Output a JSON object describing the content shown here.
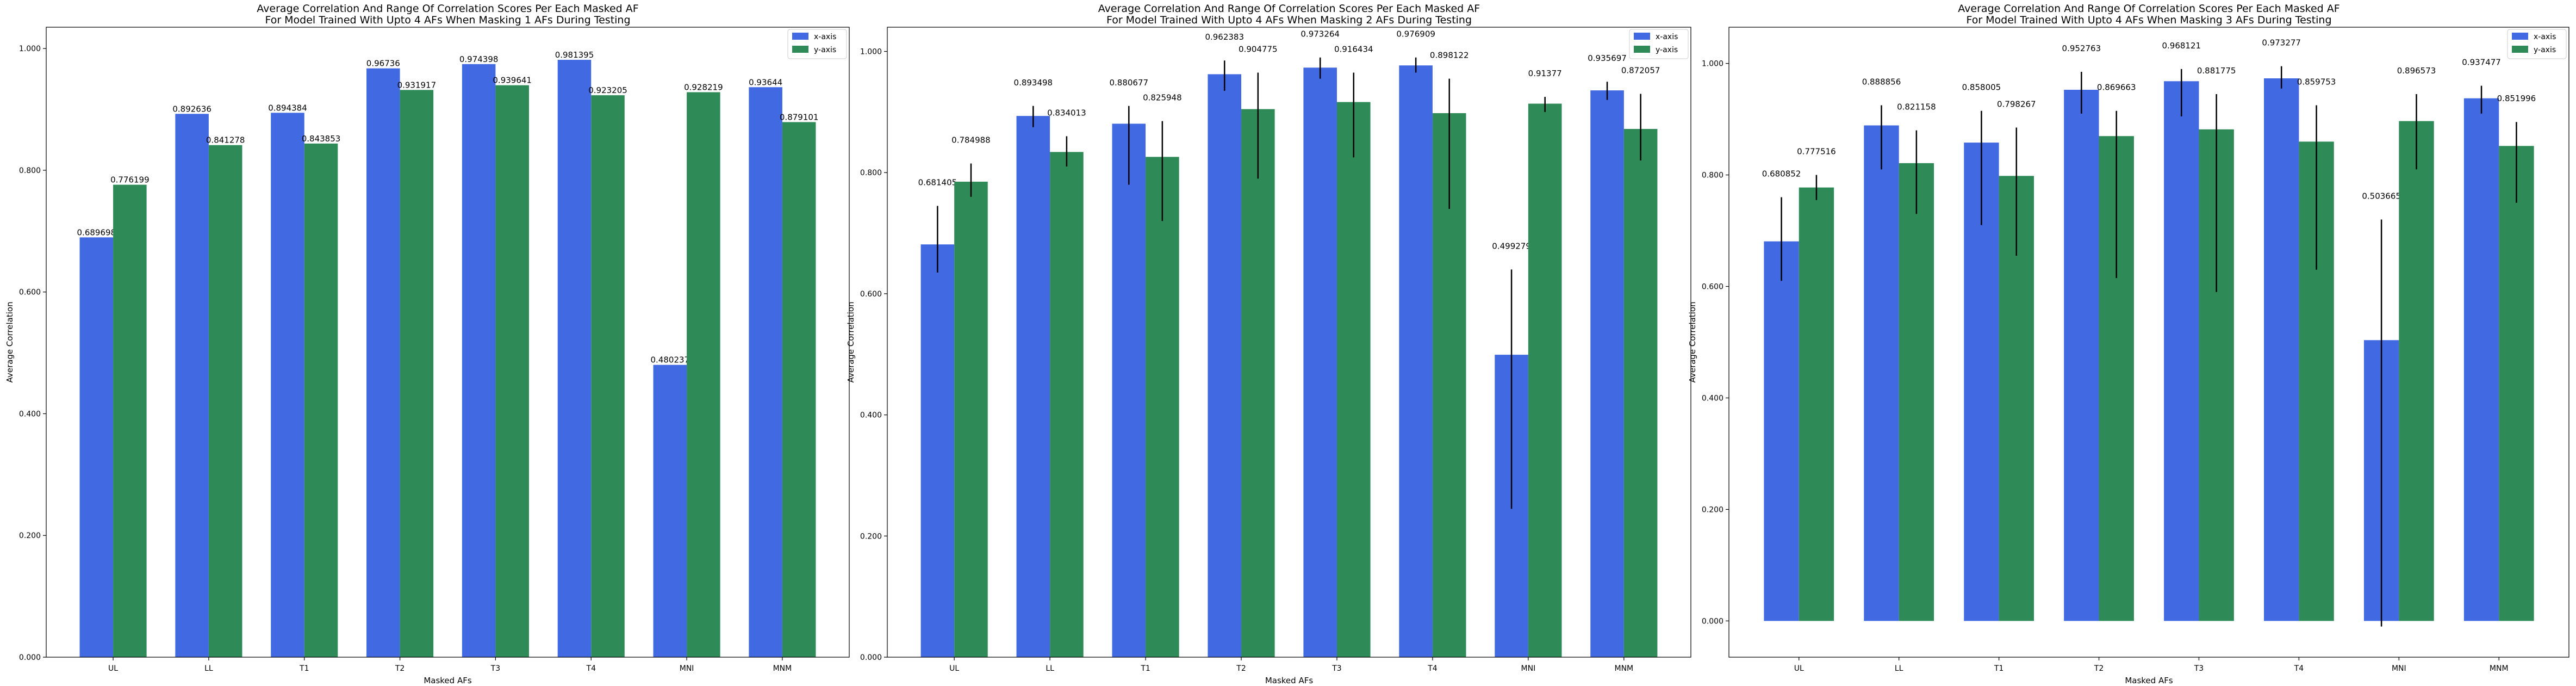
{
  "figure": {
    "background": "#ffffff",
    "x_color": "#4169e1",
    "y_color": "#2e8b57",
    "error_color": "#000000"
  },
  "chart_data": [
    {
      "type": "bar",
      "title": "Average Correlation And Range Of Correlation Scores Per Each Masked AF\nFor Model Trained With Upto 4 AFs When Masking 1 AFs During Testing",
      "xlabel": "Masked AFs",
      "ylabel": "Average Correlation",
      "categories": [
        "UL",
        "LL",
        "T1",
        "T2",
        "T3",
        "T4",
        "MNI",
        "MNM"
      ],
      "ylim": [
        0,
        1.035
      ],
      "yticks": [
        0.0,
        0.2,
        0.4,
        0.6,
        0.8,
        1.0
      ],
      "ytick_labels": [
        "0.000",
        "0.200",
        "0.400",
        "0.600",
        "0.800",
        "1.000"
      ],
      "legend_position": "top-right",
      "series": [
        {
          "name": "x-axis",
          "values": [
            0.689698,
            0.892636,
            0.894384,
            0.96736,
            0.974398,
            0.981395,
            0.480237,
            0.93644
          ],
          "labels": [
            "0.689698",
            "0.892636",
            "0.894384",
            "0.96736",
            "0.974398",
            "0.981395",
            "0.480237",
            "0.93644"
          ],
          "error_ranges": null
        },
        {
          "name": "y-axis",
          "values": [
            0.776199,
            0.841278,
            0.843853,
            0.931917,
            0.939641,
            0.923205,
            0.928219,
            0.879101
          ],
          "labels": [
            "0.776199",
            "0.841278",
            "0.843853",
            "0.931917",
            "0.939641",
            "0.923205",
            "0.928219",
            "0.879101"
          ],
          "error_ranges": null
        }
      ]
    },
    {
      "type": "bar",
      "title": "Average Correlation And Range Of Correlation Scores Per Each Masked AF\nFor Model Trained With Upto 4 AFs When Masking 2 AFs During Testing",
      "xlabel": "Masked AFs",
      "ylabel": "Average Correlation",
      "categories": [
        "UL",
        "LL",
        "T1",
        "T2",
        "T3",
        "T4",
        "MNI",
        "MNM"
      ],
      "ylim": [
        0,
        1.04
      ],
      "yticks": [
        0.0,
        0.2,
        0.4,
        0.6,
        0.8,
        1.0
      ],
      "ytick_labels": [
        "0.000",
        "0.200",
        "0.400",
        "0.600",
        "0.800",
        "1.000"
      ],
      "legend_position": "top-right",
      "series": [
        {
          "name": "x-axis",
          "values": [
            0.681405,
            0.893498,
            0.880677,
            0.962383,
            0.973264,
            0.976909,
            0.499279,
            0.935697
          ],
          "labels": [
            "0.681405",
            "0.893498",
            "0.880677",
            "0.962383",
            "0.973264",
            "0.976909",
            "0.499279",
            "0.935697"
          ],
          "error_ranges": [
            [
              0.635,
              0.745
            ],
            [
              0.875,
              0.91
            ],
            [
              0.78,
              0.91
            ],
            [
              0.935,
              0.985
            ],
            [
              0.955,
              0.99
            ],
            [
              0.965,
              0.99
            ],
            [
              0.245,
              0.64
            ],
            [
              0.92,
              0.95
            ]
          ]
        },
        {
          "name": "y-axis",
          "values": [
            0.784988,
            0.834013,
            0.825948,
            0.904775,
            0.916434,
            0.898122,
            0.91377,
            0.872057
          ],
          "labels": [
            "0.784988",
            "0.834013",
            "0.825948",
            "0.904775",
            "0.916434",
            "0.898122",
            "0.91377",
            "0.872057"
          ],
          "error_ranges": [
            [
              0.76,
              0.815
            ],
            [
              0.81,
              0.86
            ],
            [
              0.72,
              0.885
            ],
            [
              0.79,
              0.965
            ],
            [
              0.825,
              0.965
            ],
            [
              0.74,
              0.955
            ],
            [
              0.9,
              0.925
            ],
            [
              0.82,
              0.93
            ]
          ]
        }
      ]
    },
    {
      "type": "bar",
      "title": "Average Correlation And Range Of Correlation Scores Per Each Masked AF\nFor Model Trained With Upto 4 AFs When Masking 3 AFs During Testing",
      "xlabel": "Masked AFs",
      "ylabel": "Average Correlation",
      "categories": [
        "UL",
        "LL",
        "T1",
        "T2",
        "T3",
        "T4",
        "MNI",
        "MNM"
      ],
      "ylim": [
        -0.065,
        1.065
      ],
      "yticks": [
        0.0,
        0.2,
        0.4,
        0.6,
        0.8,
        1.0
      ],
      "ytick_labels": [
        "0.000",
        "0.200",
        "0.400",
        "0.600",
        "0.800",
        "1.000"
      ],
      "legend_position": "top-right",
      "series": [
        {
          "name": "x-axis",
          "values": [
            0.680852,
            0.888856,
            0.858005,
            0.952763,
            0.968121,
            0.973277,
            0.503665,
            0.937477
          ],
          "labels": [
            "0.680852",
            "0.888856",
            "0.858005",
            "0.952763",
            "0.968121",
            "0.973277",
            "0.503665",
            "0.937477"
          ],
          "error_ranges": [
            [
              0.61,
              0.76
            ],
            [
              0.81,
              0.925
            ],
            [
              0.71,
              0.915
            ],
            [
              0.91,
              0.985
            ],
            [
              0.905,
              0.99
            ],
            [
              0.955,
              0.995
            ],
            [
              -0.01,
              0.72
            ],
            [
              0.91,
              0.96
            ]
          ]
        },
        {
          "name": "y-axis",
          "values": [
            0.777516,
            0.821158,
            0.798267,
            0.869663,
            0.881775,
            0.859753,
            0.896573,
            0.851996
          ],
          "labels": [
            "0.777516",
            "0.821158",
            "0.798267",
            "0.869663",
            "0.881775",
            "0.859753",
            "0.896573",
            "0.851996"
          ],
          "error_ranges": [
            [
              0.755,
              0.8
            ],
            [
              0.73,
              0.88
            ],
            [
              0.655,
              0.885
            ],
            [
              0.615,
              0.915
            ],
            [
              0.59,
              0.945
            ],
            [
              0.63,
              0.925
            ],
            [
              0.81,
              0.945
            ],
            [
              0.75,
              0.895
            ]
          ]
        }
      ]
    }
  ]
}
